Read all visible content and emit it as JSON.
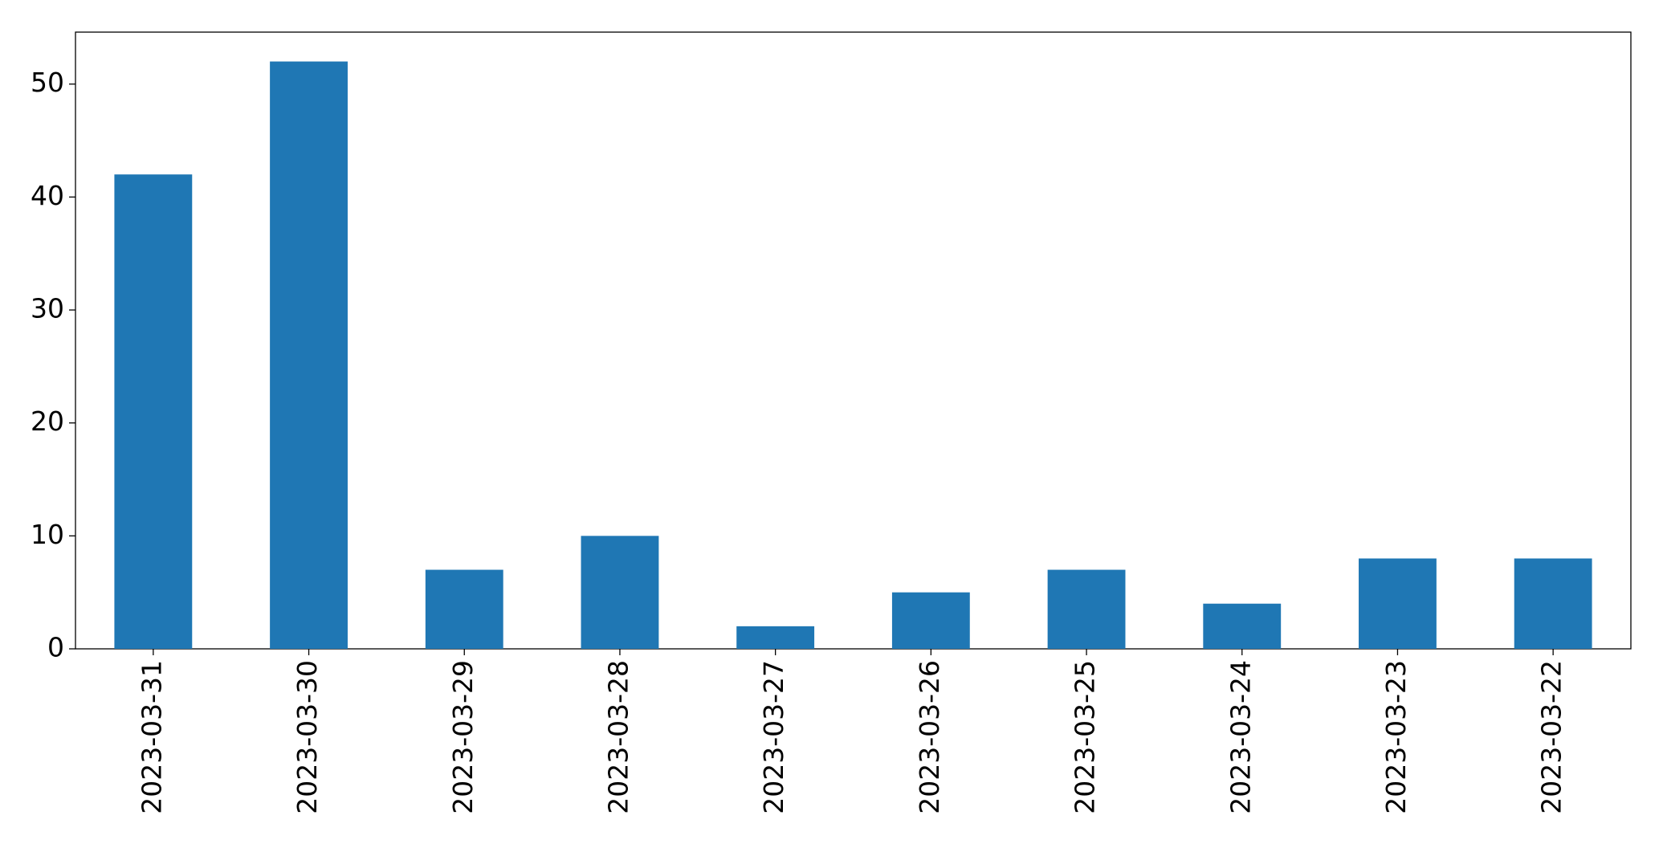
{
  "chart_data": {
    "type": "bar",
    "categories": [
      "2023-03-31",
      "2023-03-30",
      "2023-03-29",
      "2023-03-28",
      "2023-03-27",
      "2023-03-26",
      "2023-03-25",
      "2023-03-24",
      "2023-03-23",
      "2023-03-22"
    ],
    "values": [
      42,
      52,
      7,
      10,
      2,
      5,
      7,
      4,
      8,
      8
    ],
    "color": "#1f77b4",
    "ylim": [
      0,
      54.6
    ],
    "yticks": [
      0,
      10,
      20,
      30,
      40,
      50
    ],
    "grid": false
  }
}
